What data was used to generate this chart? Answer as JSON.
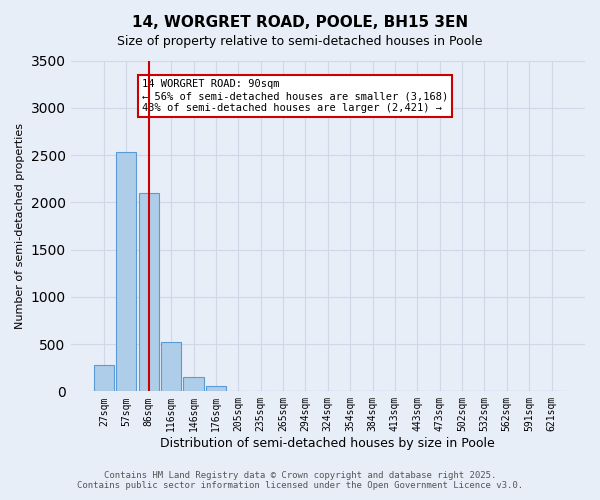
{
  "title_line1": "14, WORGRET ROAD, POOLE, BH15 3EN",
  "title_line2": "Size of property relative to semi-detached houses in Poole",
  "xlabel": "Distribution of semi-detached houses by size in Poole",
  "ylabel": "Number of semi-detached properties",
  "bin_labels": [
    "27sqm",
    "57sqm",
    "86sqm",
    "116sqm",
    "146sqm",
    "176sqm",
    "205sqm",
    "235sqm",
    "265sqm",
    "294sqm",
    "324sqm",
    "354sqm",
    "384sqm",
    "413sqm",
    "443sqm",
    "473sqm",
    "502sqm",
    "532sqm",
    "562sqm",
    "591sqm",
    "621sqm"
  ],
  "bar_values": [
    280,
    2530,
    2100,
    520,
    150,
    60,
    0,
    0,
    0,
    0,
    0,
    0,
    0,
    0,
    0,
    0,
    0,
    0,
    0,
    0,
    0
  ],
  "bar_color": "#aecde8",
  "bar_edge_color": "#5b9bd5",
  "property_bin_index": 2,
  "property_label": "14 WORGRET ROAD: 90sqm",
  "annotation_line1": "← 56% of semi-detached houses are smaller (3,168)",
  "annotation_line2": "43% of semi-detached houses are larger (2,421) →",
  "annotation_box_color": "#ffffff",
  "annotation_box_edge_color": "#cc0000",
  "vline_color": "#cc0000",
  "ylim": [
    0,
    3500
  ],
  "yticks": [
    0,
    500,
    1000,
    1500,
    2000,
    2500,
    3000,
    3500
  ],
  "grid_color": "#d0d8e8",
  "footer_line1": "Contains HM Land Registry data © Crown copyright and database right 2025.",
  "footer_line2": "Contains public sector information licensed under the Open Government Licence v3.0.",
  "bg_color": "#e8eef8",
  "plot_bg_color": "#e8eef8"
}
